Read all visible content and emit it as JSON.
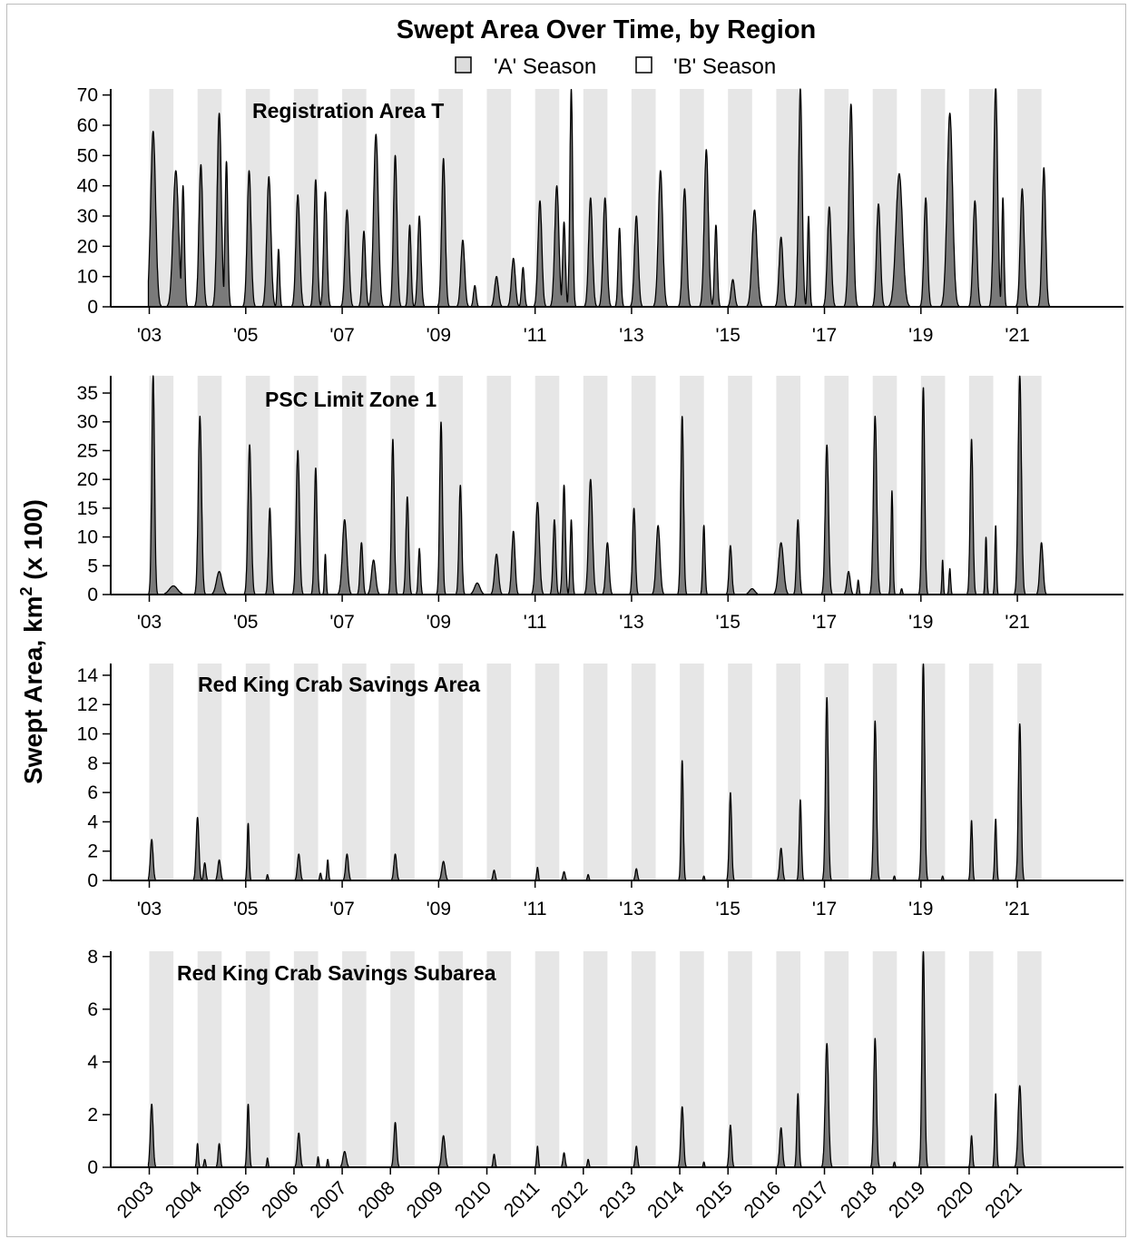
{
  "chart_data": {
    "type": "area",
    "title": "Swept Area Over Time, by Region",
    "ylabel_main": "Swept Area, km",
    "ylabel_sup": "2",
    "ylabel_suffix": " (x 100)",
    "legend": {
      "placement": "top-center",
      "items": [
        {
          "label": "'A' Season",
          "fill": "#dcdcdc"
        },
        {
          "label": "'B' Season",
          "fill": "#ffffff"
        }
      ]
    },
    "colors": {
      "area_fill": "#7a7a7a",
      "season_band": "#e6e6e6",
      "outline": "#000000"
    },
    "season_bands": {
      "description": "'A' Season",
      "start_month": 1,
      "end_month": 6
    },
    "x_range": [
      2002.2,
      2023.2
    ],
    "panels": [
      {
        "title": "Registration Area T",
        "ylim": [
          0,
          72
        ],
        "yticks": [
          0,
          10,
          20,
          30,
          40,
          50,
          60,
          70
        ],
        "xtick_labels": [
          "'03",
          "'05",
          "'07",
          "'09",
          "'11",
          "'13",
          "'15",
          "'17",
          "'19",
          "'21"
        ],
        "xtick_years": [
          2003,
          2005,
          2007,
          2009,
          2011,
          2013,
          2015,
          2017,
          2019,
          2021
        ],
        "peaks": [
          [
            2003.08,
            58,
            0.18
          ],
          [
            2003.55,
            45,
            0.2
          ],
          [
            2003.7,
            40,
            0.1
          ],
          [
            2004.07,
            47,
            0.14
          ],
          [
            2004.45,
            64,
            0.15
          ],
          [
            2004.6,
            48,
            0.1
          ],
          [
            2005.07,
            45,
            0.14
          ],
          [
            2005.48,
            43,
            0.15
          ],
          [
            2005.68,
            19,
            0.08
          ],
          [
            2006.08,
            37,
            0.14
          ],
          [
            2006.45,
            42,
            0.12
          ],
          [
            2006.65,
            38,
            0.12
          ],
          [
            2007.1,
            32,
            0.14
          ],
          [
            2007.45,
            25,
            0.12
          ],
          [
            2007.7,
            57,
            0.17
          ],
          [
            2008.1,
            50,
            0.13
          ],
          [
            2008.4,
            27,
            0.1
          ],
          [
            2008.6,
            30,
            0.12
          ],
          [
            2009.1,
            49,
            0.13
          ],
          [
            2009.5,
            22,
            0.14
          ],
          [
            2009.75,
            7,
            0.1
          ],
          [
            2010.2,
            10,
            0.14
          ],
          [
            2010.55,
            16,
            0.14
          ],
          [
            2010.75,
            13,
            0.1
          ],
          [
            2011.1,
            35,
            0.14
          ],
          [
            2011.45,
            40,
            0.15
          ],
          [
            2011.75,
            72,
            0.1
          ],
          [
            2011.6,
            28,
            0.1
          ],
          [
            2012.15,
            36,
            0.14
          ],
          [
            2012.45,
            36,
            0.14
          ],
          [
            2012.75,
            26,
            0.1
          ],
          [
            2013.1,
            30,
            0.14
          ],
          [
            2013.6,
            45,
            0.16
          ],
          [
            2014.1,
            39,
            0.14
          ],
          [
            2014.55,
            52,
            0.15
          ],
          [
            2014.75,
            27,
            0.1
          ],
          [
            2015.1,
            9,
            0.13
          ],
          [
            2015.55,
            32,
            0.18
          ],
          [
            2016.1,
            23,
            0.14
          ],
          [
            2016.5,
            72,
            0.13
          ],
          [
            2016.67,
            30,
            0.08
          ],
          [
            2017.1,
            33,
            0.14
          ],
          [
            2017.55,
            67,
            0.15
          ],
          [
            2018.12,
            34,
            0.14
          ],
          [
            2018.55,
            44,
            0.24
          ],
          [
            2019.1,
            36,
            0.13
          ],
          [
            2019.6,
            64,
            0.2
          ],
          [
            2020.12,
            35,
            0.14
          ],
          [
            2020.55,
            73,
            0.14
          ],
          [
            2020.7,
            36,
            0.08
          ],
          [
            2021.1,
            39,
            0.14
          ],
          [
            2021.55,
            46,
            0.13
          ]
        ]
      },
      {
        "title": "PSC Limit Zone 1",
        "ylim": [
          0,
          38
        ],
        "yticks": [
          0,
          5,
          10,
          15,
          20,
          25,
          30,
          35
        ],
        "xtick_labels": [
          "'03",
          "'05",
          "'07",
          "'09",
          "'11",
          "'13",
          "'15",
          "'17",
          "'19",
          "'21"
        ],
        "xtick_years": [
          2003,
          2005,
          2007,
          2009,
          2011,
          2013,
          2015,
          2017,
          2019,
          2021
        ],
        "peaks": [
          [
            2003.08,
            38,
            0.1
          ],
          [
            2003.5,
            1.5,
            0.3
          ],
          [
            2004.05,
            31,
            0.12
          ],
          [
            2004.45,
            4,
            0.2
          ],
          [
            2005.08,
            26,
            0.12
          ],
          [
            2005.5,
            15,
            0.1
          ],
          [
            2006.08,
            25,
            0.12
          ],
          [
            2006.45,
            22,
            0.1
          ],
          [
            2006.65,
            7,
            0.06
          ],
          [
            2007.05,
            13,
            0.16
          ],
          [
            2007.4,
            9,
            0.1
          ],
          [
            2007.65,
            6,
            0.15
          ],
          [
            2008.05,
            27,
            0.1
          ],
          [
            2008.35,
            17,
            0.1
          ],
          [
            2008.6,
            8,
            0.08
          ],
          [
            2009.05,
            30,
            0.1
          ],
          [
            2009.45,
            19,
            0.1
          ],
          [
            2009.8,
            2,
            0.2
          ],
          [
            2010.2,
            7,
            0.14
          ],
          [
            2010.55,
            11,
            0.12
          ],
          [
            2011.05,
            16,
            0.14
          ],
          [
            2011.4,
            13,
            0.1
          ],
          [
            2011.6,
            19,
            0.1
          ],
          [
            2011.75,
            13,
            0.08
          ],
          [
            2012.15,
            20,
            0.14
          ],
          [
            2012.5,
            9,
            0.12
          ],
          [
            2013.05,
            15,
            0.1
          ],
          [
            2013.55,
            12,
            0.14
          ],
          [
            2014.05,
            31,
            0.1
          ],
          [
            2014.5,
            12,
            0.08
          ],
          [
            2015.05,
            8.5,
            0.1
          ],
          [
            2015.5,
            1,
            0.2
          ],
          [
            2016.1,
            9,
            0.18
          ],
          [
            2016.45,
            13,
            0.1
          ],
          [
            2017.05,
            26,
            0.12
          ],
          [
            2017.5,
            4,
            0.12
          ],
          [
            2017.7,
            2.5,
            0.06
          ],
          [
            2018.05,
            31,
            0.12
          ],
          [
            2018.4,
            18,
            0.07
          ],
          [
            2018.6,
            1,
            0.06
          ],
          [
            2019.05,
            36,
            0.1
          ],
          [
            2019.45,
            6,
            0.05
          ],
          [
            2019.6,
            4.5,
            0.06
          ],
          [
            2020.05,
            27,
            0.1
          ],
          [
            2020.35,
            10,
            0.06
          ],
          [
            2020.55,
            12,
            0.06
          ],
          [
            2021.05,
            38,
            0.12
          ],
          [
            2021.5,
            9,
            0.12
          ]
        ]
      },
      {
        "title": "Red King Crab Savings Area",
        "ylim": [
          0,
          14.8
        ],
        "yticks": [
          0,
          2,
          4,
          6,
          8,
          10,
          12,
          14
        ],
        "xtick_labels": [
          "'03",
          "'05",
          "'07",
          "'09",
          "'11",
          "'13",
          "'15",
          "'17",
          "'19",
          "'21"
        ],
        "xtick_years": [
          2003,
          2005,
          2007,
          2009,
          2011,
          2013,
          2015,
          2017,
          2019,
          2021
        ],
        "peaks": [
          [
            2003.05,
            2.8,
            0.1
          ],
          [
            2004.0,
            4.3,
            0.1
          ],
          [
            2004.15,
            1.2,
            0.08
          ],
          [
            2004.45,
            1.4,
            0.1
          ],
          [
            2005.05,
            3.9,
            0.07
          ],
          [
            2005.45,
            0.4,
            0.05
          ],
          [
            2006.1,
            1.8,
            0.1
          ],
          [
            2006.55,
            0.5,
            0.06
          ],
          [
            2006.7,
            1.4,
            0.06
          ],
          [
            2007.1,
            1.8,
            0.1
          ],
          [
            2008.1,
            1.8,
            0.1
          ],
          [
            2009.1,
            1.3,
            0.12
          ],
          [
            2010.15,
            0.7,
            0.08
          ],
          [
            2011.05,
            0.9,
            0.06
          ],
          [
            2011.6,
            0.6,
            0.08
          ],
          [
            2012.1,
            0.4,
            0.06
          ],
          [
            2013.1,
            0.8,
            0.08
          ],
          [
            2014.05,
            8.2,
            0.08
          ],
          [
            2014.5,
            0.3,
            0.05
          ],
          [
            2015.05,
            6.0,
            0.09
          ],
          [
            2016.1,
            2.2,
            0.1
          ],
          [
            2016.5,
            5.5,
            0.08
          ],
          [
            2017.05,
            12.5,
            0.1
          ],
          [
            2018.05,
            10.9,
            0.1
          ],
          [
            2018.45,
            0.3,
            0.05
          ],
          [
            2019.05,
            14.8,
            0.1
          ],
          [
            2019.45,
            0.3,
            0.05
          ],
          [
            2020.05,
            4.1,
            0.07
          ],
          [
            2020.55,
            4.2,
            0.07
          ],
          [
            2021.05,
            10.7,
            0.1
          ]
        ]
      },
      {
        "title": "Red King Crab Savings Subarea",
        "ylim": [
          0,
          8.2
        ],
        "yticks": [
          0,
          2,
          4,
          6,
          8
        ],
        "xtick_labels": [
          "2003",
          "2004",
          "2005",
          "2006",
          "2007",
          "2008",
          "2009",
          "2010",
          "2011",
          "2012",
          "2013",
          "2014",
          "2015",
          "2016",
          "2017",
          "2018",
          "2019",
          "2020",
          "2021"
        ],
        "xtick_years": [
          2003,
          2004,
          2005,
          2006,
          2007,
          2008,
          2009,
          2010,
          2011,
          2012,
          2013,
          2014,
          2015,
          2016,
          2017,
          2018,
          2019,
          2020,
          2021
        ],
        "peaks": [
          [
            2003.05,
            2.4,
            0.1
          ],
          [
            2004.0,
            0.9,
            0.06
          ],
          [
            2004.15,
            0.3,
            0.06
          ],
          [
            2004.45,
            0.9,
            0.08
          ],
          [
            2005.05,
            2.4,
            0.08
          ],
          [
            2005.45,
            0.35,
            0.05
          ],
          [
            2006.1,
            1.3,
            0.1
          ],
          [
            2006.5,
            0.4,
            0.05
          ],
          [
            2006.7,
            0.3,
            0.05
          ],
          [
            2007.05,
            0.6,
            0.12
          ],
          [
            2008.1,
            1.7,
            0.1
          ],
          [
            2009.1,
            1.2,
            0.12
          ],
          [
            2010.15,
            0.5,
            0.07
          ],
          [
            2011.05,
            0.8,
            0.06
          ],
          [
            2011.6,
            0.55,
            0.08
          ],
          [
            2012.1,
            0.3,
            0.06
          ],
          [
            2013.1,
            0.8,
            0.08
          ],
          [
            2014.05,
            2.3,
            0.1
          ],
          [
            2014.5,
            0.2,
            0.05
          ],
          [
            2015.05,
            1.6,
            0.09
          ],
          [
            2016.1,
            1.5,
            0.1
          ],
          [
            2016.45,
            2.8,
            0.08
          ],
          [
            2017.05,
            4.7,
            0.12
          ],
          [
            2018.05,
            4.9,
            0.1
          ],
          [
            2018.45,
            0.2,
            0.05
          ],
          [
            2019.05,
            8.2,
            0.1
          ],
          [
            2020.05,
            1.2,
            0.07
          ],
          [
            2020.55,
            2.8,
            0.07
          ],
          [
            2021.05,
            3.1,
            0.12
          ]
        ]
      }
    ]
  }
}
